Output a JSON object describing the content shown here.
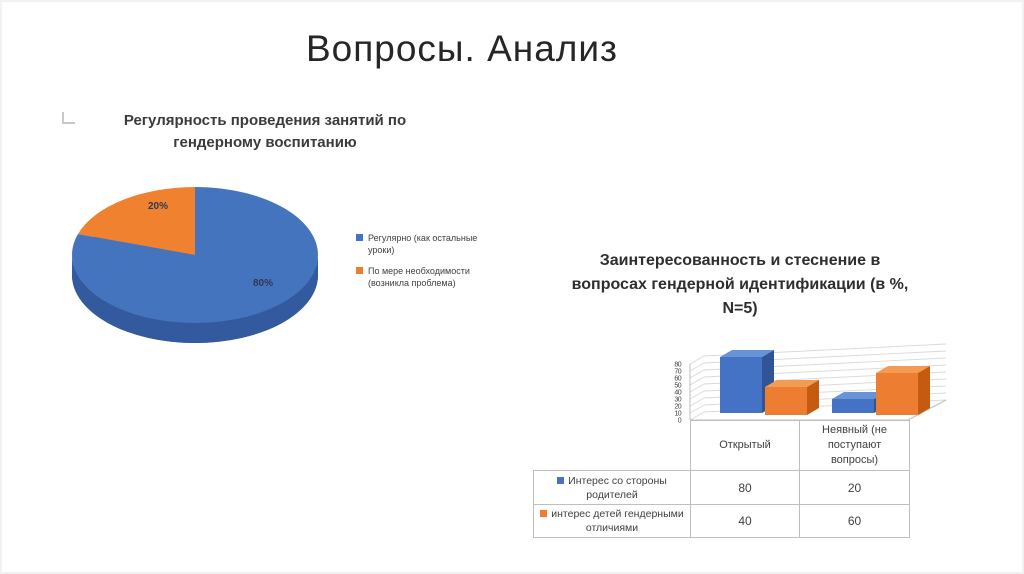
{
  "slide": {
    "title": "Вопросы. Анализ"
  },
  "accent_colors": {
    "blue": "#4472C4",
    "orange": "#ED7D31"
  },
  "chart_data": [
    {
      "type": "pie",
      "style": "3d",
      "title": "Регулярность проведения занятий по гендерному воспитанию",
      "labels": [
        "Регулярно (как остальные уроки)",
        "По мере необходимости (возникла проблема)"
      ],
      "values": [
        80,
        20
      ],
      "value_labels": [
        "80%",
        "20%"
      ],
      "colors": [
        "#4574BE",
        "#F0812F"
      ],
      "legend_position": "right"
    },
    {
      "type": "bar",
      "style": "3d",
      "title": "Заинтересованность и стеснение в вопросах гендерной идентификации (в %, N=5)",
      "categories": [
        "Открытый",
        "Неявный (не поступают вопросы)"
      ],
      "series": [
        {
          "name": "Интерес со стороны родителей",
          "color": "#4472C4",
          "values": [
            80,
            20
          ]
        },
        {
          "name": "интерес детей гендерными отличиями",
          "color": "#ED7D31",
          "values": [
            40,
            60
          ]
        }
      ],
      "ylabel": "",
      "xlabel": "",
      "ylim": [
        0,
        80
      ],
      "yticks": [
        0,
        10,
        20,
        30,
        40,
        50,
        60,
        70,
        80
      ],
      "grid": true,
      "legend_position": "data-table",
      "data_table": {
        "rows": [
          {
            "label": "Интерес со стороны родителей",
            "values": [
              "80",
              "20"
            ]
          },
          {
            "label": "интерес детей гендерными отличиями",
            "values": [
              "40",
              "60"
            ]
          }
        ]
      }
    }
  ]
}
